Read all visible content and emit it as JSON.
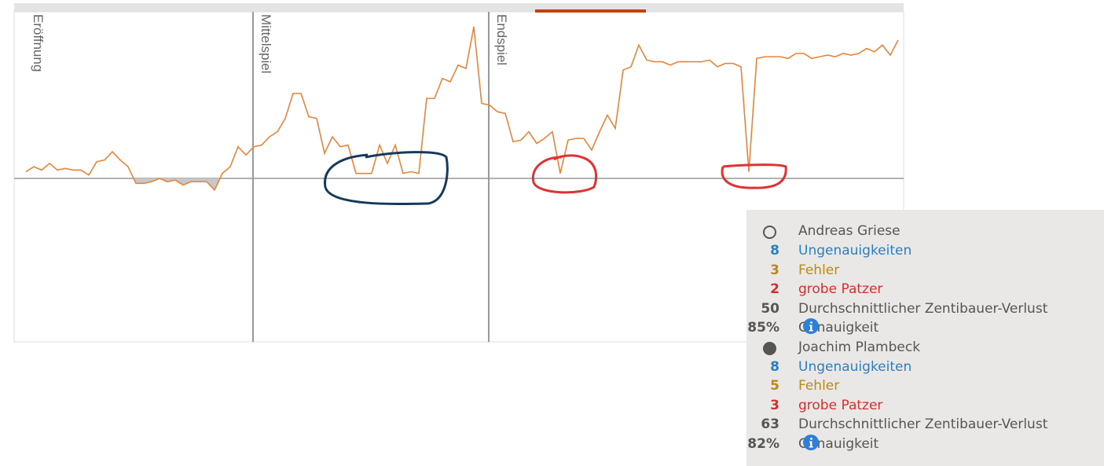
{
  "chart_data": {
    "type": "line",
    "color": "#e8843a",
    "negative_fill": "#c8c8c8",
    "ylim": [
      -1,
      1
    ],
    "values": [
      0.04,
      0.07,
      0.05,
      0.09,
      0.05,
      0.06,
      0.05,
      0.05,
      0.02,
      0.1,
      0.11,
      0.16,
      0.11,
      0.07,
      -0.03,
      -0.03,
      -0.02,
      0.0,
      -0.02,
      -0.01,
      -0.04,
      -0.02,
      -0.02,
      -0.02,
      -0.07,
      0.03,
      0.07,
      0.19,
      0.14,
      0.19,
      0.2,
      0.25,
      0.28,
      0.36,
      0.51,
      0.51,
      0.37,
      0.36,
      0.15,
      0.25,
      0.19,
      0.2,
      0.03,
      0.03,
      0.03,
      0.2,
      0.09,
      0.2,
      0.03,
      0.04,
      0.03,
      0.48,
      0.48,
      0.6,
      0.58,
      0.68,
      0.66,
      0.91,
      0.45,
      0.44,
      0.4,
      0.39,
      0.22,
      0.23,
      0.28,
      0.21,
      0.24,
      0.28,
      0.03,
      0.23,
      0.24,
      0.24,
      0.17,
      0.28,
      0.38,
      0.3,
      0.65,
      0.67,
      0.8,
      0.71,
      0.7,
      0.7,
      0.68,
      0.7,
      0.7,
      0.7,
      0.7,
      0.71,
      0.67,
      0.69,
      0.69,
      0.67,
      0.04,
      0.72,
      0.73,
      0.73,
      0.73,
      0.72,
      0.75,
      0.75,
      0.72,
      0.73,
      0.74,
      0.73,
      0.75,
      0.74,
      0.75,
      0.78,
      0.76,
      0.8,
      0.74,
      0.83
    ],
    "phases": [
      {
        "label": "Eröffnung",
        "start": 0
      },
      {
        "label": "Mittelspiel",
        "start": 29
      },
      {
        "label": "Endspiel",
        "start": 59
      }
    ]
  },
  "stats": {
    "players": [
      {
        "name": "Andreas Griese",
        "rows": [
          {
            "count": 8,
            "label": "Ungenauigkeiten"
          },
          {
            "count": 3,
            "label": "Fehler"
          },
          {
            "count": 2,
            "label": "grobe Patzer"
          },
          {
            "count": 50,
            "label": "Durchschnittlicher Zentibauer-Verlust"
          },
          {
            "count": "85%",
            "label": "Genauigkeit"
          }
        ]
      },
      {
        "name": "Joachim Plambeck",
        "rows": [
          {
            "count": 8,
            "label": "Ungenauigkeiten"
          },
          {
            "count": 5,
            "label": "Fehler"
          },
          {
            "count": 3,
            "label": "grobe Patzer"
          },
          {
            "count": 63,
            "label": "Durchschnittlicher Zentibauer-Verlust"
          },
          {
            "count": "82%",
            "label": "Genauigkeit"
          }
        ]
      }
    ]
  }
}
